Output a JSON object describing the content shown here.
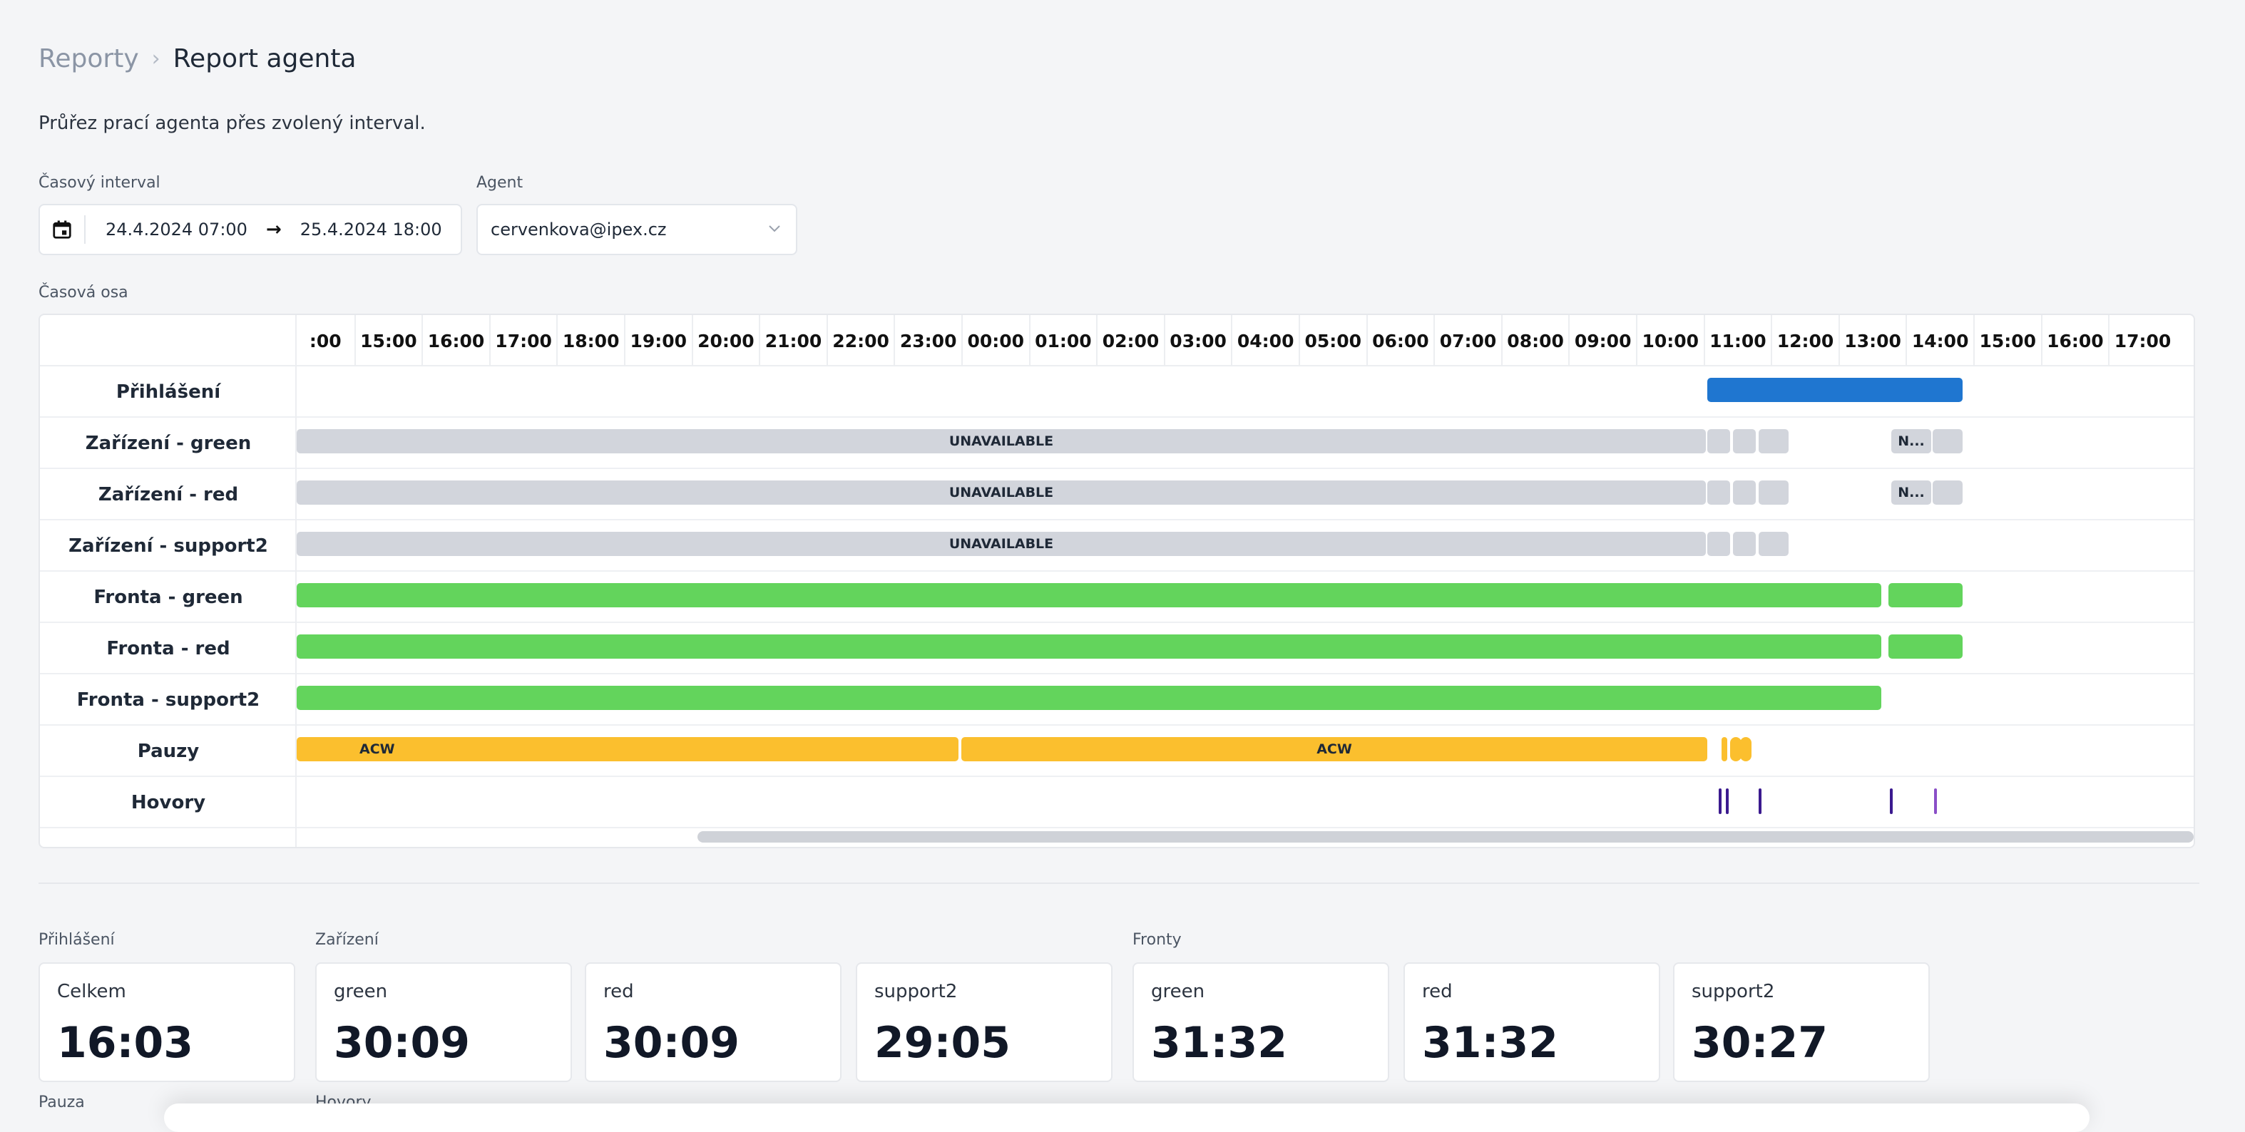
{
  "breadcrumb": {
    "parent": "Reporty",
    "current": "Report agenta"
  },
  "description": "Průřez prací agenta přes zvolený interval.",
  "filters": {
    "interval_label": "Časový interval",
    "date_from": "24.4.2024 07:00",
    "date_to": "25.4.2024 18:00",
    "agent_label": "Agent",
    "agent_value": "cervenkova@ipex.cz"
  },
  "timeline": {
    "title": "Časová osa",
    "ticks": [
      ":00",
      "15:00",
      "16:00",
      "17:00",
      "18:00",
      "19:00",
      "20:00",
      "21:00",
      "22:00",
      "23:00",
      "00:00",
      "01:00",
      "02:00",
      "03:00",
      "04:00",
      "05:00",
      "06:00",
      "07:00",
      "08:00",
      "09:00",
      "10:00",
      "11:00",
      "12:00",
      "13:00",
      "14:00",
      "15:00",
      "16:00",
      "17:00"
    ],
    "rows": [
      {
        "label": "Přihlášení"
      },
      {
        "label": "Zařízení - green"
      },
      {
        "label": "Zařízení - red"
      },
      {
        "label": "Zařízení - support2"
      },
      {
        "label": "Fronta - green"
      },
      {
        "label": "Fronta - red"
      },
      {
        "label": "Fronta - support2"
      },
      {
        "label": "Pauzy"
      },
      {
        "label": "Hovory"
      }
    ],
    "bar_labels": {
      "unavailable": "UNAVAILABLE",
      "short_n": "N...",
      "acw": "ACW"
    },
    "colors": {
      "login": "#1f76d0",
      "device": "#d2d5dc",
      "queue": "#63d45c",
      "pause": "#fbbf2e",
      "call_dark": "#3b1a8f",
      "call_light": "#8a4fc7"
    }
  },
  "stats": {
    "login_section": "Přihlášení",
    "device_section": "Zařízení",
    "queue_section": "Fronty",
    "pause_section": "Pauza",
    "calls_section": "Hovory",
    "cards": [
      {
        "title": "Celkem",
        "value": "16:03"
      },
      {
        "title": "green",
        "value": "30:09"
      },
      {
        "title": "red",
        "value": "30:09"
      },
      {
        "title": "support2",
        "value": "29:05"
      },
      {
        "title": "green",
        "value": "31:32"
      },
      {
        "title": "red",
        "value": "31:32"
      },
      {
        "title": "support2",
        "value": "30:27"
      }
    ]
  }
}
